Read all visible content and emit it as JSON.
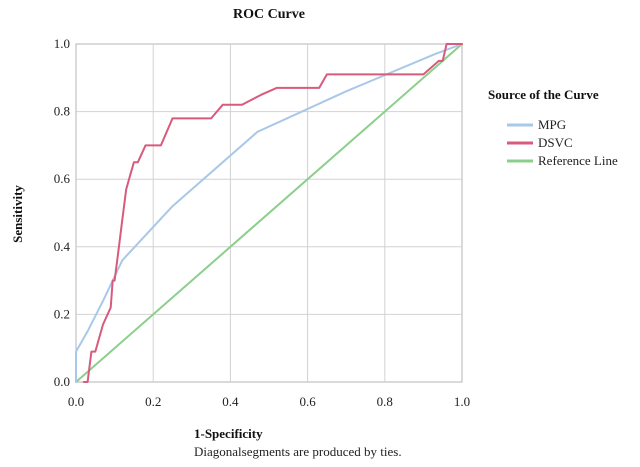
{
  "chart_data": {
    "type": "line",
    "title": "ROC Curve",
    "xlabel": "1-Specificity",
    "ylabel": "Sensitivity",
    "note": "Diagonalsegments are produced by ties.",
    "xlim": [
      0.0,
      1.0
    ],
    "ylim": [
      0.0,
      1.0
    ],
    "xticks": [
      "0.0",
      "0.2",
      "0.4",
      "0.6",
      "0.8",
      "1.0"
    ],
    "yticks": [
      "0.0",
      "0.2",
      "0.4",
      "0.6",
      "0.8",
      "1.0"
    ],
    "grid": true,
    "legend": {
      "title": "Source of the Curve",
      "position": "right"
    },
    "series": [
      {
        "name": "MPG",
        "color": "#a9c8e8",
        "x": [
          0.0,
          0.0,
          0.03,
          0.07,
          0.12,
          0.25,
          0.47,
          0.7,
          0.93,
          1.0
        ],
        "y": [
          0.0,
          0.09,
          0.15,
          0.24,
          0.36,
          0.52,
          0.74,
          0.86,
          0.97,
          1.0
        ]
      },
      {
        "name": "DSVC",
        "color": "#d85a7c",
        "x": [
          0.02,
          0.03,
          0.04,
          0.05,
          0.07,
          0.09,
          0.095,
          0.1,
          0.11,
          0.12,
          0.13,
          0.14,
          0.15,
          0.16,
          0.18,
          0.22,
          0.25,
          0.26,
          0.35,
          0.38,
          0.4,
          0.43,
          0.48,
          0.52,
          0.63,
          0.65,
          0.86,
          0.9,
          0.94,
          0.95,
          0.96,
          1.0
        ],
        "y": [
          0.0,
          0.0,
          0.09,
          0.09,
          0.17,
          0.22,
          0.3,
          0.3,
          0.39,
          0.48,
          0.57,
          0.61,
          0.65,
          0.65,
          0.7,
          0.7,
          0.78,
          0.78,
          0.78,
          0.82,
          0.82,
          0.82,
          0.85,
          0.87,
          0.87,
          0.91,
          0.91,
          0.91,
          0.95,
          0.95,
          1.0,
          1.0
        ]
      },
      {
        "name": "Reference Line",
        "color": "#8ccf8c",
        "x": [
          0.0,
          1.0
        ],
        "y": [
          0.0,
          1.0
        ]
      }
    ]
  }
}
